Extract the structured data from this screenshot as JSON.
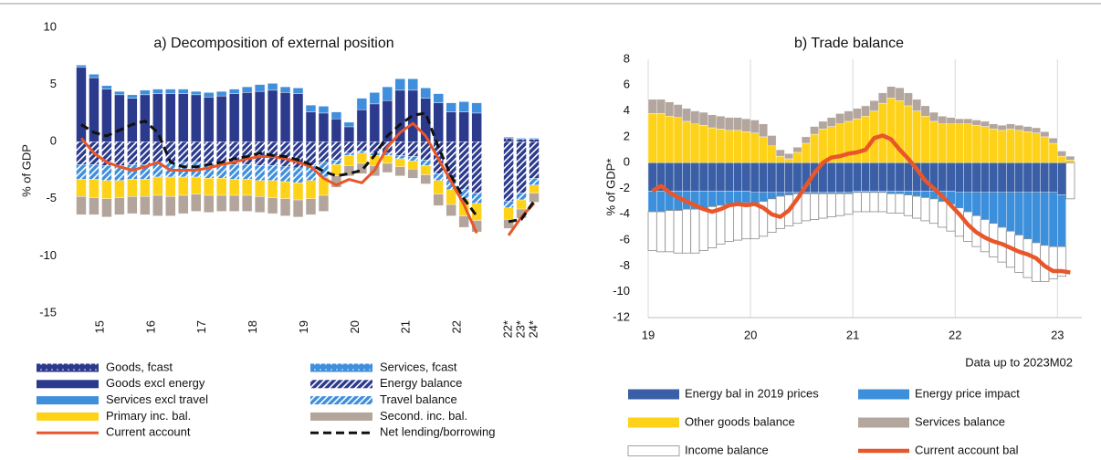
{
  "chart_data": [
    {
      "type": "bar",
      "title": "a) Decomposition of external position",
      "ylabel": "% of GDP",
      "categories": [
        null,
        "15",
        null,
        null,
        null,
        "16",
        null,
        null,
        null,
        "17",
        null,
        null,
        null,
        "18",
        null,
        null,
        null,
        "19",
        null,
        null,
        null,
        "20",
        null,
        null,
        null,
        "21",
        null,
        null,
        null,
        "22",
        null,
        null,
        "22*",
        "23*",
        "24*"
      ],
      "ylim": [
        -15,
        10
      ],
      "yticks": [
        -15,
        -10,
        -5,
        0,
        5,
        10
      ],
      "series": [
        {
          "name": "Goods, fcast",
          "type": "bar",
          "color": "#2b3a8c",
          "pattern": "dots",
          "values": [
            null,
            null,
            null,
            null,
            null,
            null,
            null,
            null,
            null,
            null,
            null,
            null,
            null,
            null,
            null,
            null,
            null,
            null,
            null,
            null,
            null,
            null,
            null,
            null,
            null,
            null,
            null,
            null,
            null,
            null,
            null,
            null,
            0.3,
            0.2,
            0.2
          ]
        },
        {
          "name": "Services, fcast",
          "type": "bar",
          "color": "#3f8fdc",
          "pattern": "dots",
          "values": [
            null,
            null,
            null,
            null,
            null,
            null,
            null,
            null,
            null,
            null,
            null,
            null,
            null,
            null,
            null,
            null,
            null,
            null,
            null,
            null,
            null,
            null,
            null,
            null,
            null,
            null,
            null,
            null,
            null,
            null,
            null,
            null,
            0.1,
            0.1,
            0.1
          ]
        },
        {
          "name": "Goods excl energy",
          "type": "bar",
          "color": "#2b3a8c",
          "values": [
            6.5,
            5.6,
            4.6,
            4.1,
            3.8,
            4.1,
            4.2,
            4.2,
            4.2,
            4.1,
            3.9,
            4.0,
            4.2,
            4.3,
            4.4,
            4.5,
            4.3,
            4.2,
            2.6,
            2.5,
            2.0,
            1.3,
            2.8,
            3.3,
            3.6,
            4.5,
            4.5,
            3.8,
            3.4,
            2.6,
            2.6,
            2.5,
            null,
            null,
            null
          ]
        },
        {
          "name": "Energy balance",
          "type": "bar",
          "color": "#2b3a8c",
          "pattern": "hatch",
          "values": [
            -2.0,
            -2.0,
            -2.1,
            -2.1,
            -2.0,
            -2.0,
            -1.8,
            -1.8,
            -1.8,
            -1.8,
            -1.9,
            -1.9,
            -2.0,
            -2.0,
            -2.1,
            -2.1,
            -2.2,
            -2.3,
            -2.1,
            -1.8,
            -1.6,
            -1.0,
            -0.8,
            -1.0,
            -1.0,
            -1.2,
            -1.3,
            -1.6,
            -2.8,
            -3.5,
            -4.2,
            -4.5,
            -5.2,
            -4.5,
            -3.2
          ]
        },
        {
          "name": "Services excl travel",
          "type": "bar",
          "color": "#3f8fdc",
          "values": [
            0.2,
            0.3,
            0.3,
            0.3,
            0.3,
            0.4,
            0.4,
            0.4,
            0.4,
            0.3,
            0.4,
            0.4,
            0.4,
            0.5,
            0.6,
            0.6,
            0.5,
            0.5,
            0.6,
            0.6,
            0.6,
            0.4,
            1.0,
            1.0,
            1.2,
            1.0,
            1.0,
            0.9,
            0.8,
            0.8,
            0.9,
            0.9,
            null,
            null,
            null
          ]
        },
        {
          "name": "Travel balance",
          "type": "bar",
          "color": "#3f8fdc",
          "pattern": "hatch",
          "values": [
            -1.3,
            -1.3,
            -1.3,
            -1.3,
            -1.3,
            -1.3,
            -1.3,
            -1.3,
            -1.3,
            -1.3,
            -1.3,
            -1.3,
            -1.3,
            -1.3,
            -1.3,
            -1.3,
            -1.3,
            -1.3,
            -1.3,
            -1.3,
            -0.4,
            -0.2,
            -0.2,
            -0.2,
            -0.2,
            -0.3,
            -0.4,
            -0.5,
            -0.6,
            -0.7,
            -0.8,
            -0.9,
            -0.6,
            -0.6,
            -0.6
          ]
        },
        {
          "name": "Primary inc. bal.",
          "type": "bar",
          "color": "#ffd21a",
          "values": [
            -1.5,
            -1.6,
            -1.6,
            -1.5,
            -1.5,
            -1.5,
            -1.6,
            -1.7,
            -1.6,
            -1.5,
            -1.5,
            -1.5,
            -1.4,
            -1.4,
            -1.4,
            -1.5,
            -1.5,
            -1.5,
            -1.6,
            -1.6,
            -1.0,
            -0.9,
            -0.9,
            -0.9,
            -0.7,
            -0.7,
            -0.7,
            -0.8,
            -1.2,
            -1.3,
            -1.5,
            -1.5,
            -1.0,
            -0.8,
            -0.7
          ]
        },
        {
          "name": "Second. inc. bal.",
          "type": "bar",
          "color": "#b3a59c",
          "values": [
            -1.6,
            -1.5,
            -1.6,
            -1.5,
            -1.5,
            -1.6,
            -1.8,
            -1.7,
            -1.6,
            -1.5,
            -1.5,
            -1.4,
            -1.4,
            -1.4,
            -1.4,
            -1.4,
            -1.5,
            -1.5,
            -1.4,
            -1.4,
            -1.0,
            -0.9,
            -0.9,
            -0.9,
            -0.8,
            -0.8,
            -0.8,
            -0.8,
            -1.0,
            -1.0,
            -1.0,
            -1.0,
            -0.8,
            -0.8,
            -0.8
          ]
        },
        {
          "name": "Current account",
          "type": "line",
          "color": "#e8562a",
          "values": [
            0.3,
            -1.0,
            -1.8,
            -2.2,
            -2.5,
            -2.2,
            -1.8,
            -2.5,
            -2.5,
            -2.5,
            -2.3,
            -2.0,
            -1.8,
            -1.5,
            -1.3,
            -1.3,
            -1.5,
            -1.8,
            -2.2,
            -3.2,
            -3.8,
            -3.3,
            -3.6,
            -2.5,
            -0.5,
            0.8,
            1.6,
            0.5,
            -1.5,
            -3.5,
            -5.5,
            -8.0,
            -8.2,
            -6.6,
            -5.4
          ]
        },
        {
          "name": "Net lending/borrowing",
          "type": "line",
          "color": "#111111",
          "dash": true,
          "values": [
            1.5,
            0.8,
            0.5,
            1.0,
            1.5,
            1.8,
            0.8,
            -1.8,
            -2.2,
            -2.2,
            -2.0,
            -1.8,
            -1.5,
            -1.3,
            -1.0,
            -1.2,
            -1.3,
            -1.6,
            -2.0,
            -2.6,
            -3.0,
            -2.8,
            -2.5,
            -1.2,
            0.5,
            1.5,
            2.3,
            2.5,
            -0.5,
            -3.0,
            -5.0,
            -6.5,
            -7.0,
            -6.8,
            -5.2
          ]
        }
      ]
    },
    {
      "type": "bar",
      "title": "b) Trade balance",
      "ylabel": "% of GDP*",
      "annotation": "Data up to 2023M02",
      "xgrid": true,
      "categories": [
        "19",
        null,
        null,
        null,
        null,
        null,
        null,
        null,
        null,
        null,
        null,
        null,
        "20",
        null,
        null,
        null,
        null,
        null,
        null,
        null,
        null,
        null,
        null,
        null,
        "21",
        null,
        null,
        null,
        null,
        null,
        null,
        null,
        null,
        null,
        null,
        null,
        "22",
        null,
        null,
        null,
        null,
        null,
        null,
        null,
        null,
        null,
        null,
        null,
        "23",
        null
      ],
      "ylim": [
        -12,
        8
      ],
      "yticks": [
        -12,
        -10,
        -8,
        -6,
        -4,
        -2,
        0,
        2,
        4,
        6,
        8
      ],
      "series": [
        {
          "name": "Energy bal in 2019 prices",
          "type": "bar",
          "color": "#3a5fa6",
          "values": [
            -2.2,
            -2.2,
            -2.2,
            -2.2,
            -2.2,
            -2.2,
            -2.2,
            -2.2,
            -2.2,
            -2.2,
            -2.2,
            -2.2,
            -2.3,
            -2.3,
            -2.3,
            -2.3,
            -2.3,
            -2.3,
            -2.3,
            -2.3,
            -2.3,
            -2.3,
            -2.3,
            -2.3,
            -2.2,
            -2.2,
            -2.2,
            -2.2,
            -2.2,
            -2.2,
            -2.2,
            -2.2,
            -2.2,
            -2.2,
            -2.2,
            -2.2,
            -2.3,
            -2.3,
            -2.3,
            -2.3,
            -2.3,
            -2.3,
            -2.3,
            -2.3,
            -2.3,
            -2.3,
            -2.3,
            -2.3,
            -2.5,
            0
          ]
        },
        {
          "name": "Energy price impact",
          "type": "bar",
          "color": "#3c8fdb",
          "values": [
            -1.6,
            -1.6,
            -1.5,
            -1.5,
            -1.4,
            -1.4,
            -1.3,
            -1.2,
            -1.1,
            -1.0,
            -1.0,
            -0.9,
            -0.8,
            -0.7,
            -0.5,
            -0.3,
            -0.2,
            -0.1,
            -0.1,
            -0.1,
            -0.1,
            -0.1,
            -0.1,
            -0.1,
            -0.1,
            -0.1,
            -0.1,
            -0.1,
            -0.2,
            -0.2,
            -0.3,
            -0.4,
            -0.5,
            -0.6,
            -0.8,
            -1.0,
            -1.2,
            -1.5,
            -1.8,
            -2.1,
            -2.4,
            -2.7,
            -3.0,
            -3.3,
            -3.6,
            -3.9,
            -4.1,
            -4.2,
            -4.0,
            0
          ]
        },
        {
          "name": "Other goods balance",
          "type": "bar",
          "color": "#ffd21a",
          "values": [
            3.8,
            3.8,
            3.6,
            3.5,
            3.2,
            3.0,
            2.9,
            2.7,
            2.6,
            2.5,
            2.5,
            2.4,
            2.3,
            2.0,
            1.3,
            0.5,
            0.3,
            0.8,
            1.5,
            2.2,
            2.6,
            2.8,
            3.0,
            3.2,
            3.4,
            3.6,
            4.0,
            4.6,
            5.0,
            4.8,
            4.4,
            4.0,
            3.6,
            3.2,
            3.0,
            3.0,
            3.0,
            3.0,
            2.9,
            2.8,
            2.6,
            2.5,
            2.6,
            2.5,
            2.4,
            2.3,
            2.0,
            1.5,
            0.5,
            0.2
          ]
        },
        {
          "name": "Services balance",
          "type": "bar",
          "color": "#b3a69e",
          "values": [
            1.1,
            1.1,
            1.1,
            1.0,
            1.0,
            1.0,
            1.0,
            1.0,
            1.0,
            1.0,
            1.0,
            1.0,
            1.0,
            1.0,
            0.8,
            0.5,
            0.4,
            0.4,
            0.5,
            0.6,
            0.6,
            0.7,
            0.8,
            0.8,
            0.8,
            0.8,
            0.8,
            0.8,
            0.9,
            1.0,
            1.0,
            0.9,
            0.8,
            0.7,
            0.6,
            0.5,
            0.4,
            0.4,
            0.4,
            0.4,
            0.4,
            0.4,
            0.4,
            0.4,
            0.4,
            0.4,
            0.4,
            0.4,
            0.4,
            0.3
          ]
        },
        {
          "name": "Income balance",
          "type": "bar",
          "color": "#ffffff",
          "stroke": "#8c8c8c",
          "values": [
            -3.0,
            -3.1,
            -3.2,
            -3.3,
            -3.4,
            -3.4,
            -3.3,
            -3.2,
            -3.0,
            -2.9,
            -2.8,
            -2.8,
            -2.8,
            -2.7,
            -2.6,
            -2.5,
            -2.4,
            -2.3,
            -2.1,
            -2.0,
            -1.9,
            -1.8,
            -1.7,
            -1.6,
            -1.5,
            -1.5,
            -1.5,
            -1.5,
            -1.5,
            -1.5,
            -1.6,
            -1.7,
            -1.8,
            -1.9,
            -2.0,
            -2.1,
            -2.2,
            -2.3,
            -2.4,
            -2.5,
            -2.6,
            -2.7,
            -2.8,
            -2.9,
            -3.0,
            -3.0,
            -2.8,
            -2.5,
            -2.3,
            -2.8
          ]
        },
        {
          "name": "Current account bal",
          "type": "line",
          "color": "#e8562a",
          "values": [
            -2.2,
            -1.8,
            -2.3,
            -2.7,
            -3.0,
            -3.3,
            -3.6,
            -3.8,
            -3.6,
            -3.3,
            -3.2,
            -3.3,
            -3.2,
            -3.5,
            -4.0,
            -4.2,
            -3.7,
            -2.8,
            -1.8,
            -0.8,
            0.0,
            0.4,
            0.5,
            0.7,
            0.8,
            1.0,
            1.9,
            2.1,
            1.8,
            1.0,
            0.3,
            -0.5,
            -1.4,
            -2.0,
            -2.6,
            -3.3,
            -4.0,
            -4.8,
            -5.4,
            -5.8,
            -6.1,
            -6.3,
            -6.6,
            -6.9,
            -7.1,
            -7.4,
            -8.0,
            -8.4,
            -8.4,
            -8.5
          ]
        }
      ]
    }
  ]
}
